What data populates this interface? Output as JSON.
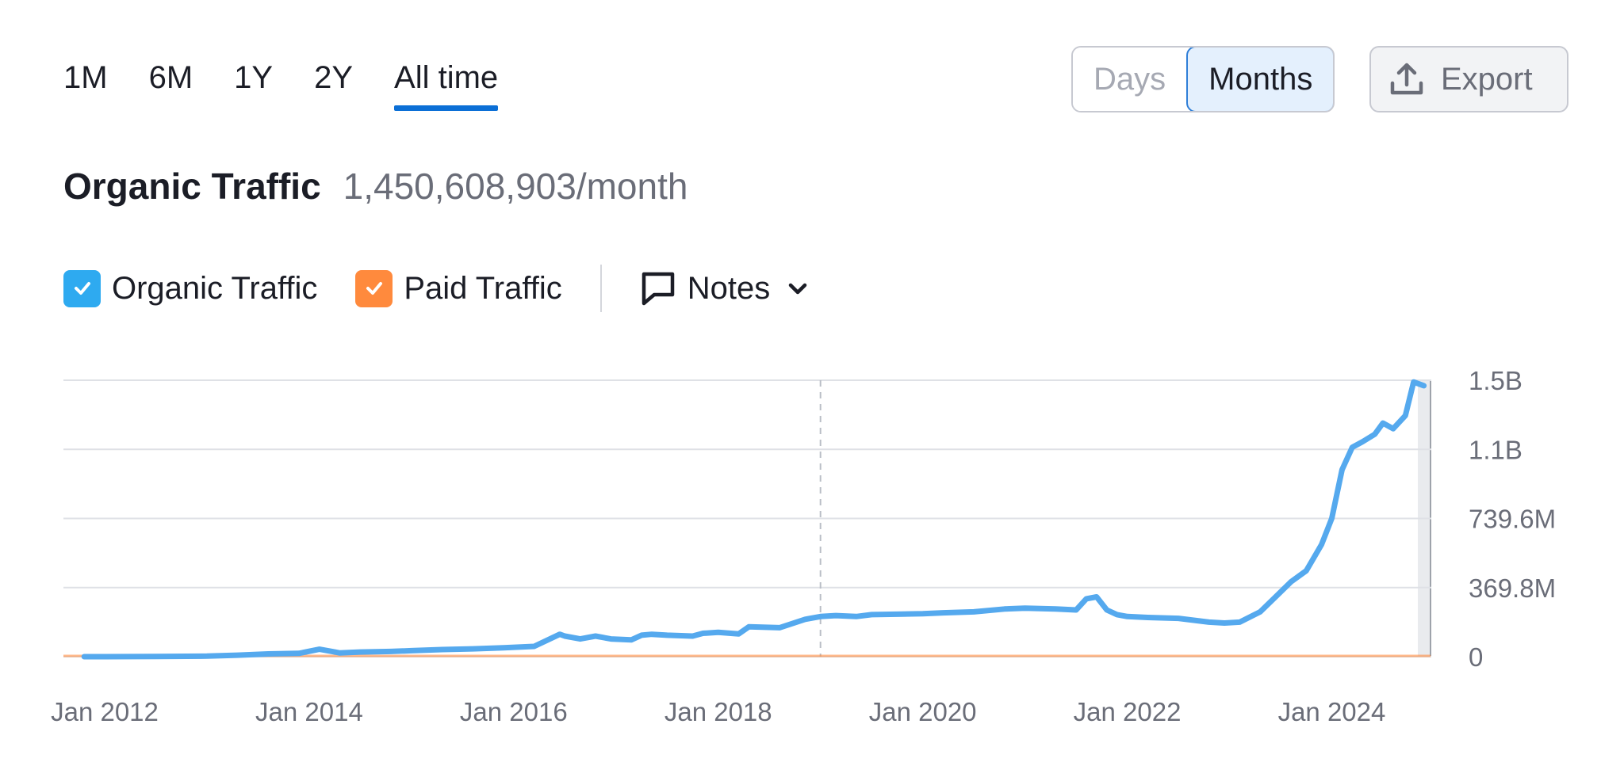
{
  "period_tabs": [
    {
      "label": "1M",
      "active": false
    },
    {
      "label": "6M",
      "active": false
    },
    {
      "label": "1Y",
      "active": false
    },
    {
      "label": "2Y",
      "active": false
    },
    {
      "label": "All time",
      "active": true
    }
  ],
  "granularity": {
    "days_label": "Days",
    "months_label": "Months",
    "selected": "Months"
  },
  "export_label": "Export",
  "header": {
    "title": "Organic Traffic",
    "value": "1,450,608,903/month"
  },
  "legend": {
    "organic_label": "Organic Traffic",
    "paid_label": "Paid Traffic",
    "notes_label": "Notes"
  },
  "colors": {
    "organic": "#2eaaf0",
    "organic_line": "#55a9ee",
    "paid": "#ff8a3d",
    "accent": "#0b6fd6"
  },
  "chart_data": {
    "type": "line",
    "x_ticks": [
      "Jan 2012",
      "Jan 2014",
      "Jan 2016",
      "Jan 2018",
      "Jan 2020",
      "Jan 2022",
      "Jan 2024"
    ],
    "y_ticks": [
      "0",
      "369.8M",
      "739.6M",
      "1.1B",
      "1.5B"
    ],
    "y_tick_values": [
      0,
      369.8,
      739.6,
      1109.4,
      1479.2
    ],
    "ylim": [
      0,
      1479.2
    ],
    "xlim": [
      2012.0,
      2024.95
    ],
    "y_unit": "M",
    "grid": true,
    "series": [
      {
        "name": "Organic Traffic",
        "x": [
          2011.8,
          2012.0,
          2012.5,
          2013.0,
          2013.3,
          2013.6,
          2013.9,
          2014.1,
          2014.25,
          2014.3,
          2014.5,
          2014.8,
          2015.0,
          2015.3,
          2015.6,
          2015.9,
          2016.2,
          2016.45,
          2016.5,
          2016.65,
          2016.8,
          2016.95,
          2017.15,
          2017.25,
          2017.35,
          2017.5,
          2017.75,
          2017.85,
          2018.0,
          2018.2,
          2018.3,
          2018.6,
          2018.85,
          2019.0,
          2019.15,
          2019.35,
          2019.5,
          2019.8,
          2020.0,
          2020.2,
          2020.5,
          2020.8,
          2021.0,
          2021.3,
          2021.5,
          2021.6,
          2021.7,
          2021.8,
          2021.9,
          2022.0,
          2022.2,
          2022.5,
          2022.8,
          2022.95,
          2023.1,
          2023.3,
          2023.45,
          2023.6,
          2023.75,
          2023.9,
          2024.0,
          2024.1,
          2024.2,
          2024.3,
          2024.42,
          2024.5,
          2024.6,
          2024.72,
          2024.8,
          2024.9
        ],
        "values": [
          0,
          0,
          1,
          3,
          8,
          15,
          18,
          40,
          25,
          20,
          25,
          28,
          32,
          38,
          42,
          48,
          55,
          120,
          110,
          95,
          110,
          95,
          90,
          115,
          120,
          115,
          110,
          125,
          130,
          122,
          160,
          155,
          200,
          215,
          220,
          215,
          225,
          228,
          230,
          235,
          240,
          255,
          260,
          255,
          250,
          310,
          320,
          250,
          225,
          215,
          210,
          205,
          185,
          180,
          185,
          240,
          320,
          400,
          460,
          600,
          740,
          1000,
          1120,
          1150,
          1190,
          1250,
          1220,
          1290,
          1470,
          1450
        ]
      },
      {
        "name": "Paid Traffic",
        "x": [
          2011.8,
          2024.95
        ],
        "values": [
          0,
          0
        ]
      }
    ]
  }
}
